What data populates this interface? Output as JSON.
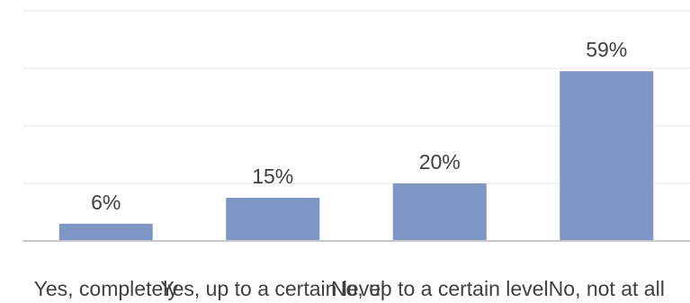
{
  "chart_data": {
    "type": "bar",
    "categories": [
      "Yes, completely",
      "Yes, up to a certain level",
      "No, up to a certain level",
      "No, not at all"
    ],
    "values": [
      6,
      15,
      20,
      59
    ],
    "data_labels": [
      "6%",
      "15%",
      "20%",
      "59%"
    ],
    "ylim": [
      0,
      80
    ],
    "grid": true,
    "colors": {
      "bar": "#7f96c5",
      "grid": "#e6e6e6",
      "axis": "#c8c8c8",
      "text": "#404040"
    }
  }
}
